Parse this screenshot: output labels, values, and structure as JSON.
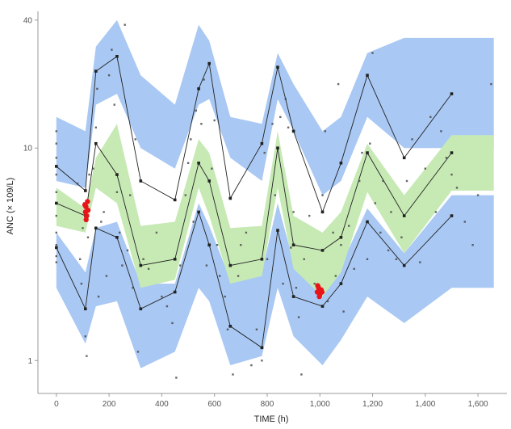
{
  "chart_data": {
    "type": "line",
    "title": "",
    "xlabel": "TIME (h)",
    "ylabel": "ANC (× 109/L)",
    "xlim": [
      -70,
      1710
    ],
    "ylim": [
      0.7,
      44
    ],
    "yscale": "log",
    "x_ticks": [
      0,
      200,
      400,
      600,
      800,
      1000,
      1200,
      1400,
      1600
    ],
    "x_tick_labels": [
      "0",
      "200",
      "400",
      "600",
      "800",
      "1,000",
      "1,200",
      "1,400",
      "1,600"
    ],
    "y_ticks": [
      1,
      10,
      40
    ],
    "y_tick_labels": [
      "1",
      "10",
      "40"
    ],
    "grid": false,
    "colors": {
      "outer_pi": "#a9c8f3",
      "median_pi": "#c7eab5",
      "median_pi_overlap": "#7fc3b6",
      "observed_line": "#222222",
      "observed_points": "#444444",
      "highlight": "#e8141a"
    },
    "bands": {
      "x": [
        0,
        110,
        150,
        230,
        320,
        450,
        540,
        580,
        660,
        780,
        840,
        900,
        1010,
        1080,
        1180,
        1320,
        1500,
        1660
      ],
      "upper_hi": [
        14,
        12,
        30,
        40,
        22,
        16,
        38,
        32,
        14,
        13,
        28,
        20,
        12,
        14,
        28,
        33,
        33,
        33
      ],
      "upper_lo": [
        7,
        6.5,
        16,
        18,
        10,
        8,
        16,
        17,
        9,
        7,
        17,
        12,
        6,
        7,
        14,
        10,
        10,
        10
      ],
      "median_hi": [
        6.5,
        5.2,
        9,
        13,
        4.3,
        4.5,
        11,
        9.5,
        4.2,
        4.3,
        12,
        4.8,
        4.0,
        5.0,
        10.5,
        6.0,
        11.5,
        11.5
      ],
      "median_lo": [
        4.3,
        4.0,
        6.5,
        5.5,
        2.2,
        2.4,
        6.5,
        4.8,
        2.3,
        2.5,
        6.5,
        2.7,
        2.0,
        2.6,
        6.2,
        3.2,
        6.3,
        6.3
      ],
      "lower_hi": [
        4.0,
        2.6,
        4.2,
        4.5,
        2.3,
        2.3,
        5.5,
        4.3,
        2.4,
        2.6,
        5.5,
        2.9,
        2.0,
        2.8,
        5.2,
        3.2,
        6.0,
        6.0
      ],
      "lower_lo": [
        2.2,
        1.2,
        1.8,
        1.9,
        0.92,
        1.1,
        2.2,
        1.9,
        0.95,
        1.05,
        2.2,
        1.3,
        0.95,
        1.25,
        2.0,
        1.5,
        2.2,
        2.2
      ]
    },
    "series": [
      {
        "x": [
          0,
          110,
          150,
          230,
          320,
          450,
          540,
          580,
          660,
          780,
          840,
          900,
          1010,
          1080,
          1180,
          1320,
          1500
        ],
        "values": [
          8.2,
          6.3,
          23,
          27,
          7.0,
          5.7,
          19,
          25,
          5.8,
          10.5,
          24,
          12,
          5.0,
          8.5,
          22,
          9,
          18
        ]
      },
      {
        "x": [
          0,
          110,
          150,
          230,
          320,
          450,
          540,
          580,
          660,
          780,
          840,
          900,
          1010,
          1080,
          1180,
          1320,
          1500
        ],
        "values": [
          5.5,
          4.8,
          10.5,
          7.5,
          2.8,
          3.0,
          8.5,
          7.0,
          2.8,
          3.0,
          10.0,
          3.5,
          3.3,
          3.8,
          9.5,
          4.8,
          9.5
        ]
      },
      {
        "x": [
          0,
          110,
          150,
          230,
          320,
          450,
          540,
          580,
          660,
          780,
          840,
          900,
          1010,
          1080,
          1180,
          1320,
          1500
        ],
        "values": [
          3.4,
          1.75,
          4.2,
          3.8,
          1.75,
          2.1,
          5.0,
          3.5,
          1.45,
          1.15,
          4.1,
          2.0,
          1.8,
          2.3,
          4.5,
          2.8,
          4.8
        ]
      }
    ],
    "observations": [
      [
        0,
        3.1
      ],
      [
        0,
        3.5
      ],
      [
        0,
        4.0
      ],
      [
        0,
        4.8
      ],
      [
        0,
        6.2
      ],
      [
        0,
        7.5
      ],
      [
        0,
        9.0
      ],
      [
        0,
        10.5
      ],
      [
        0,
        12.0
      ],
      [
        0,
        2.9
      ],
      [
        80,
        6.8
      ],
      [
        90,
        3.0
      ],
      [
        95,
        2.3
      ],
      [
        100,
        4.2
      ],
      [
        105,
        5.5
      ],
      [
        110,
        1.3
      ],
      [
        115,
        1.05
      ],
      [
        120,
        3.8
      ],
      [
        125,
        7.5
      ],
      [
        140,
        8.0
      ],
      [
        150,
        12.5
      ],
      [
        155,
        19
      ],
      [
        160,
        2.0
      ],
      [
        170,
        4.5
      ],
      [
        180,
        5.0
      ],
      [
        190,
        2.5
      ],
      [
        200,
        22
      ],
      [
        210,
        29
      ],
      [
        220,
        16
      ],
      [
        230,
        6.2
      ],
      [
        240,
        4.0
      ],
      [
        250,
        2.8
      ],
      [
        260,
        38
      ],
      [
        270,
        3.3
      ],
      [
        280,
        6.0
      ],
      [
        290,
        2.2
      ],
      [
        300,
        11
      ],
      [
        310,
        1.1
      ],
      [
        330,
        3.0
      ],
      [
        350,
        2.7
      ],
      [
        380,
        4.0
      ],
      [
        400,
        2.0
      ],
      [
        420,
        1.8
      ],
      [
        440,
        1.5
      ],
      [
        455,
        0.83
      ],
      [
        470,
        2.8
      ],
      [
        490,
        6.0
      ],
      [
        500,
        8.5
      ],
      [
        510,
        11.0
      ],
      [
        520,
        4.5
      ],
      [
        530,
        15
      ],
      [
        550,
        13
      ],
      [
        560,
        21
      ],
      [
        570,
        2.8
      ],
      [
        590,
        8.0
      ],
      [
        600,
        13.5
      ],
      [
        610,
        3.5
      ],
      [
        620,
        2.5
      ],
      [
        640,
        2.0
      ],
      [
        650,
        1.4
      ],
      [
        670,
        0.86
      ],
      [
        690,
        2.5
      ],
      [
        700,
        3.5
      ],
      [
        720,
        4.0
      ],
      [
        740,
        0.95
      ],
      [
        760,
        1.4
      ],
      [
        780,
        1.0
      ],
      [
        790,
        9.5
      ],
      [
        800,
        3.0
      ],
      [
        820,
        13
      ],
      [
        830,
        6.0
      ],
      [
        850,
        14
      ],
      [
        860,
        2.3
      ],
      [
        870,
        17
      ],
      [
        880,
        12.5
      ],
      [
        890,
        3.4
      ],
      [
        900,
        5.0
      ],
      [
        910,
        2.2
      ],
      [
        920,
        1.6
      ],
      [
        930,
        0.86
      ],
      [
        940,
        3.0
      ],
      [
        960,
        4.8
      ],
      [
        980,
        2.3
      ],
      [
        1000,
        2.0
      ],
      [
        1010,
        6.0
      ],
      [
        1020,
        12.0
      ],
      [
        1030,
        1.9
      ],
      [
        1050,
        4.0
      ],
      [
        1060,
        2.5
      ],
      [
        1070,
        20
      ],
      [
        1080,
        3.5
      ],
      [
        1090,
        1.7
      ],
      [
        1110,
        4.3
      ],
      [
        1130,
        2.7
      ],
      [
        1150,
        7.0
      ],
      [
        1160,
        9.5
      ],
      [
        1180,
        3.0
      ],
      [
        1190,
        10.5
      ],
      [
        1200,
        28
      ],
      [
        1210,
        5.5
      ],
      [
        1230,
        4.0
      ],
      [
        1240,
        7.0
      ],
      [
        1260,
        3.3
      ],
      [
        1270,
        5.0
      ],
      [
        1290,
        3.0
      ],
      [
        1310,
        3.8
      ],
      [
        1330,
        7.0
      ],
      [
        1350,
        11
      ],
      [
        1380,
        2.9
      ],
      [
        1400,
        8.0
      ],
      [
        1420,
        14
      ],
      [
        1440,
        5.0
      ],
      [
        1460,
        12
      ],
      [
        1480,
        9.0
      ],
      [
        1500,
        7.5
      ],
      [
        1520,
        6.5
      ],
      [
        1550,
        4.5
      ],
      [
        1580,
        3.5
      ],
      [
        1600,
        6.0
      ],
      [
        1650,
        20
      ]
    ],
    "highlight_points": [
      [
        110,
        5.0
      ],
      [
        112,
        5.3
      ],
      [
        115,
        4.8
      ],
      [
        118,
        5.6
      ],
      [
        120,
        5.1
      ],
      [
        113,
        4.6
      ],
      [
        108,
        5.4
      ],
      [
        990,
        2.1
      ],
      [
        995,
        2.2
      ],
      [
        1000,
        2.05
      ],
      [
        1005,
        2.15
      ],
      [
        998,
        2.0
      ],
      [
        992,
        2.25
      ],
      [
        1008,
        2.1
      ]
    ]
  }
}
